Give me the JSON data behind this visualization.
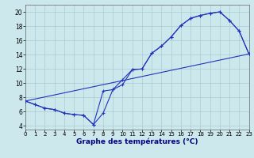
{
  "xlabel": "Graphe des températures (°C)",
  "bg_color": "#cce8ec",
  "grid_color": "#aaccd2",
  "line_color": "#2233bb",
  "xlim": [
    0,
    23
  ],
  "ylim": [
    3.5,
    21.0
  ],
  "xticks": [
    0,
    1,
    2,
    3,
    4,
    5,
    6,
    7,
    8,
    9,
    10,
    11,
    12,
    13,
    14,
    15,
    16,
    17,
    18,
    19,
    20,
    21,
    22,
    23
  ],
  "yticks": [
    4,
    6,
    8,
    10,
    12,
    14,
    16,
    18,
    20
  ],
  "series_min_x": [
    0,
    1,
    2,
    3,
    4,
    5,
    6,
    7,
    8,
    9,
    10,
    11,
    12,
    13,
    14,
    15,
    16,
    17,
    18,
    19,
    20,
    21,
    22,
    23
  ],
  "series_min_y": [
    7.5,
    7.0,
    6.5,
    6.3,
    5.8,
    5.6,
    5.5,
    4.2,
    5.8,
    9.1,
    9.8,
    11.9,
    12.0,
    14.2,
    15.2,
    16.5,
    18.1,
    19.1,
    19.5,
    19.8,
    20.0,
    18.8,
    17.3,
    14.1
  ],
  "series_max_x": [
    0,
    1,
    2,
    3,
    4,
    5,
    6,
    7,
    8,
    9,
    10,
    11,
    12,
    13,
    14,
    15,
    16,
    17,
    18,
    19,
    20,
    21,
    22,
    23
  ],
  "series_max_y": [
    7.5,
    7.0,
    6.5,
    6.3,
    5.8,
    5.6,
    5.5,
    4.2,
    8.9,
    9.1,
    10.5,
    11.9,
    12.0,
    14.2,
    15.2,
    16.5,
    18.1,
    19.1,
    19.5,
    19.8,
    20.0,
    18.8,
    17.3,
    14.1
  ],
  "trend_x": [
    0,
    23
  ],
  "trend_y": [
    7.5,
    14.1
  ],
  "xlabel_fontsize": 6.5,
  "tick_fontsize_x": 5.0,
  "tick_fontsize_y": 5.5
}
